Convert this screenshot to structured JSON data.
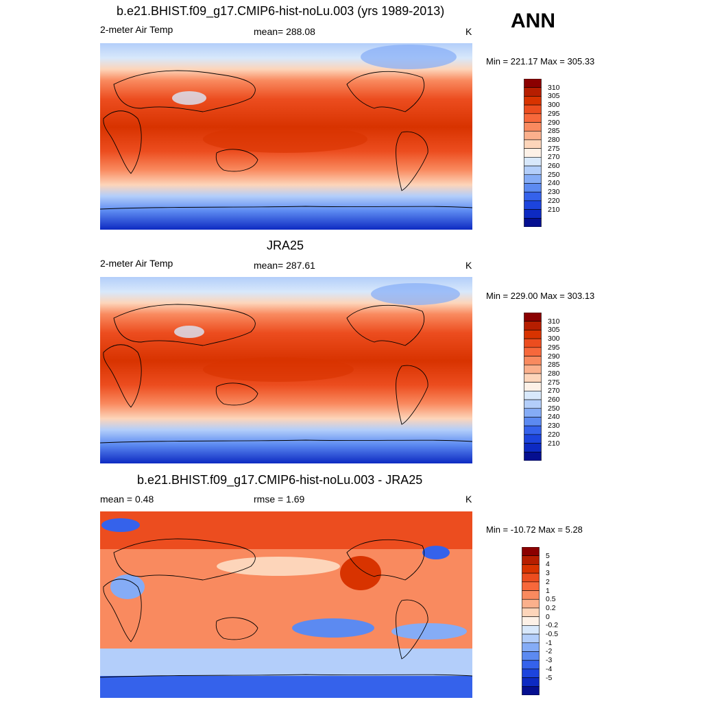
{
  "season": "ANN",
  "panels": [
    {
      "title": "b.e21.BHIST.f09_g17.CMIP6-hist-noLu.003 (yrs 1989-2013)",
      "left_label": "2-meter Air Temp",
      "center_label": "mean= 288.08",
      "units": "K",
      "minmax": "Min = 221.17 Max = 305.33",
      "colorbar_ticks": [
        "310",
        "305",
        "300",
        "295",
        "290",
        "285",
        "280",
        "275",
        "270",
        "260",
        "250",
        "240",
        "230",
        "220",
        "210"
      ],
      "colorbar_colors": [
        "#8b0000",
        "#b61e00",
        "#d83300",
        "#ec4d1f",
        "#f7683b",
        "#f98a5f",
        "#fbb08c",
        "#fdd5ba",
        "#fdf1e7",
        "#d8e8fb",
        "#b3cefa",
        "#85acf6",
        "#5c8af1",
        "#3562eb",
        "#1c44dd",
        "#0d2ac2",
        "#050f90"
      ]
    },
    {
      "title": "JRA25",
      "left_label": "2-meter Air Temp",
      "center_label": "mean= 287.61",
      "units": "K",
      "minmax": "Min = 229.00 Max = 303.13",
      "colorbar_ticks": [
        "310",
        "305",
        "300",
        "295",
        "290",
        "285",
        "280",
        "275",
        "270",
        "260",
        "250",
        "240",
        "230",
        "220",
        "210"
      ],
      "colorbar_colors": [
        "#8b0000",
        "#b61e00",
        "#d83300",
        "#ec4d1f",
        "#f7683b",
        "#f98a5f",
        "#fbb08c",
        "#fdd5ba",
        "#fdf1e7",
        "#d8e8fb",
        "#b3cefa",
        "#85acf6",
        "#5c8af1",
        "#3562eb",
        "#1c44dd",
        "#0d2ac2",
        "#050f90"
      ]
    },
    {
      "title": "b.e21.BHIST.f09_g17.CMIP6-hist-noLu.003 - JRA25",
      "left_label": "mean =   0.48",
      "center_label": "rmse =   1.69",
      "units": "K",
      "minmax": "Min = -10.72 Max =   5.28",
      "colorbar_ticks": [
        "5",
        "4",
        "3",
        "2",
        "1",
        "0.5",
        "0.2",
        "0",
        "-0.2",
        "-0.5",
        "-1",
        "-2",
        "-3",
        "-4",
        "-5"
      ],
      "colorbar_colors": [
        "#8b0000",
        "#b61e00",
        "#d83300",
        "#ec4d1f",
        "#f7683b",
        "#f98a5f",
        "#fbb08c",
        "#fdd5ba",
        "#fdf1e7",
        "#d8e8fb",
        "#b3cefa",
        "#85acf6",
        "#5c8af1",
        "#3562eb",
        "#1c44dd",
        "#0d2ac2",
        "#050f90"
      ]
    }
  ]
}
